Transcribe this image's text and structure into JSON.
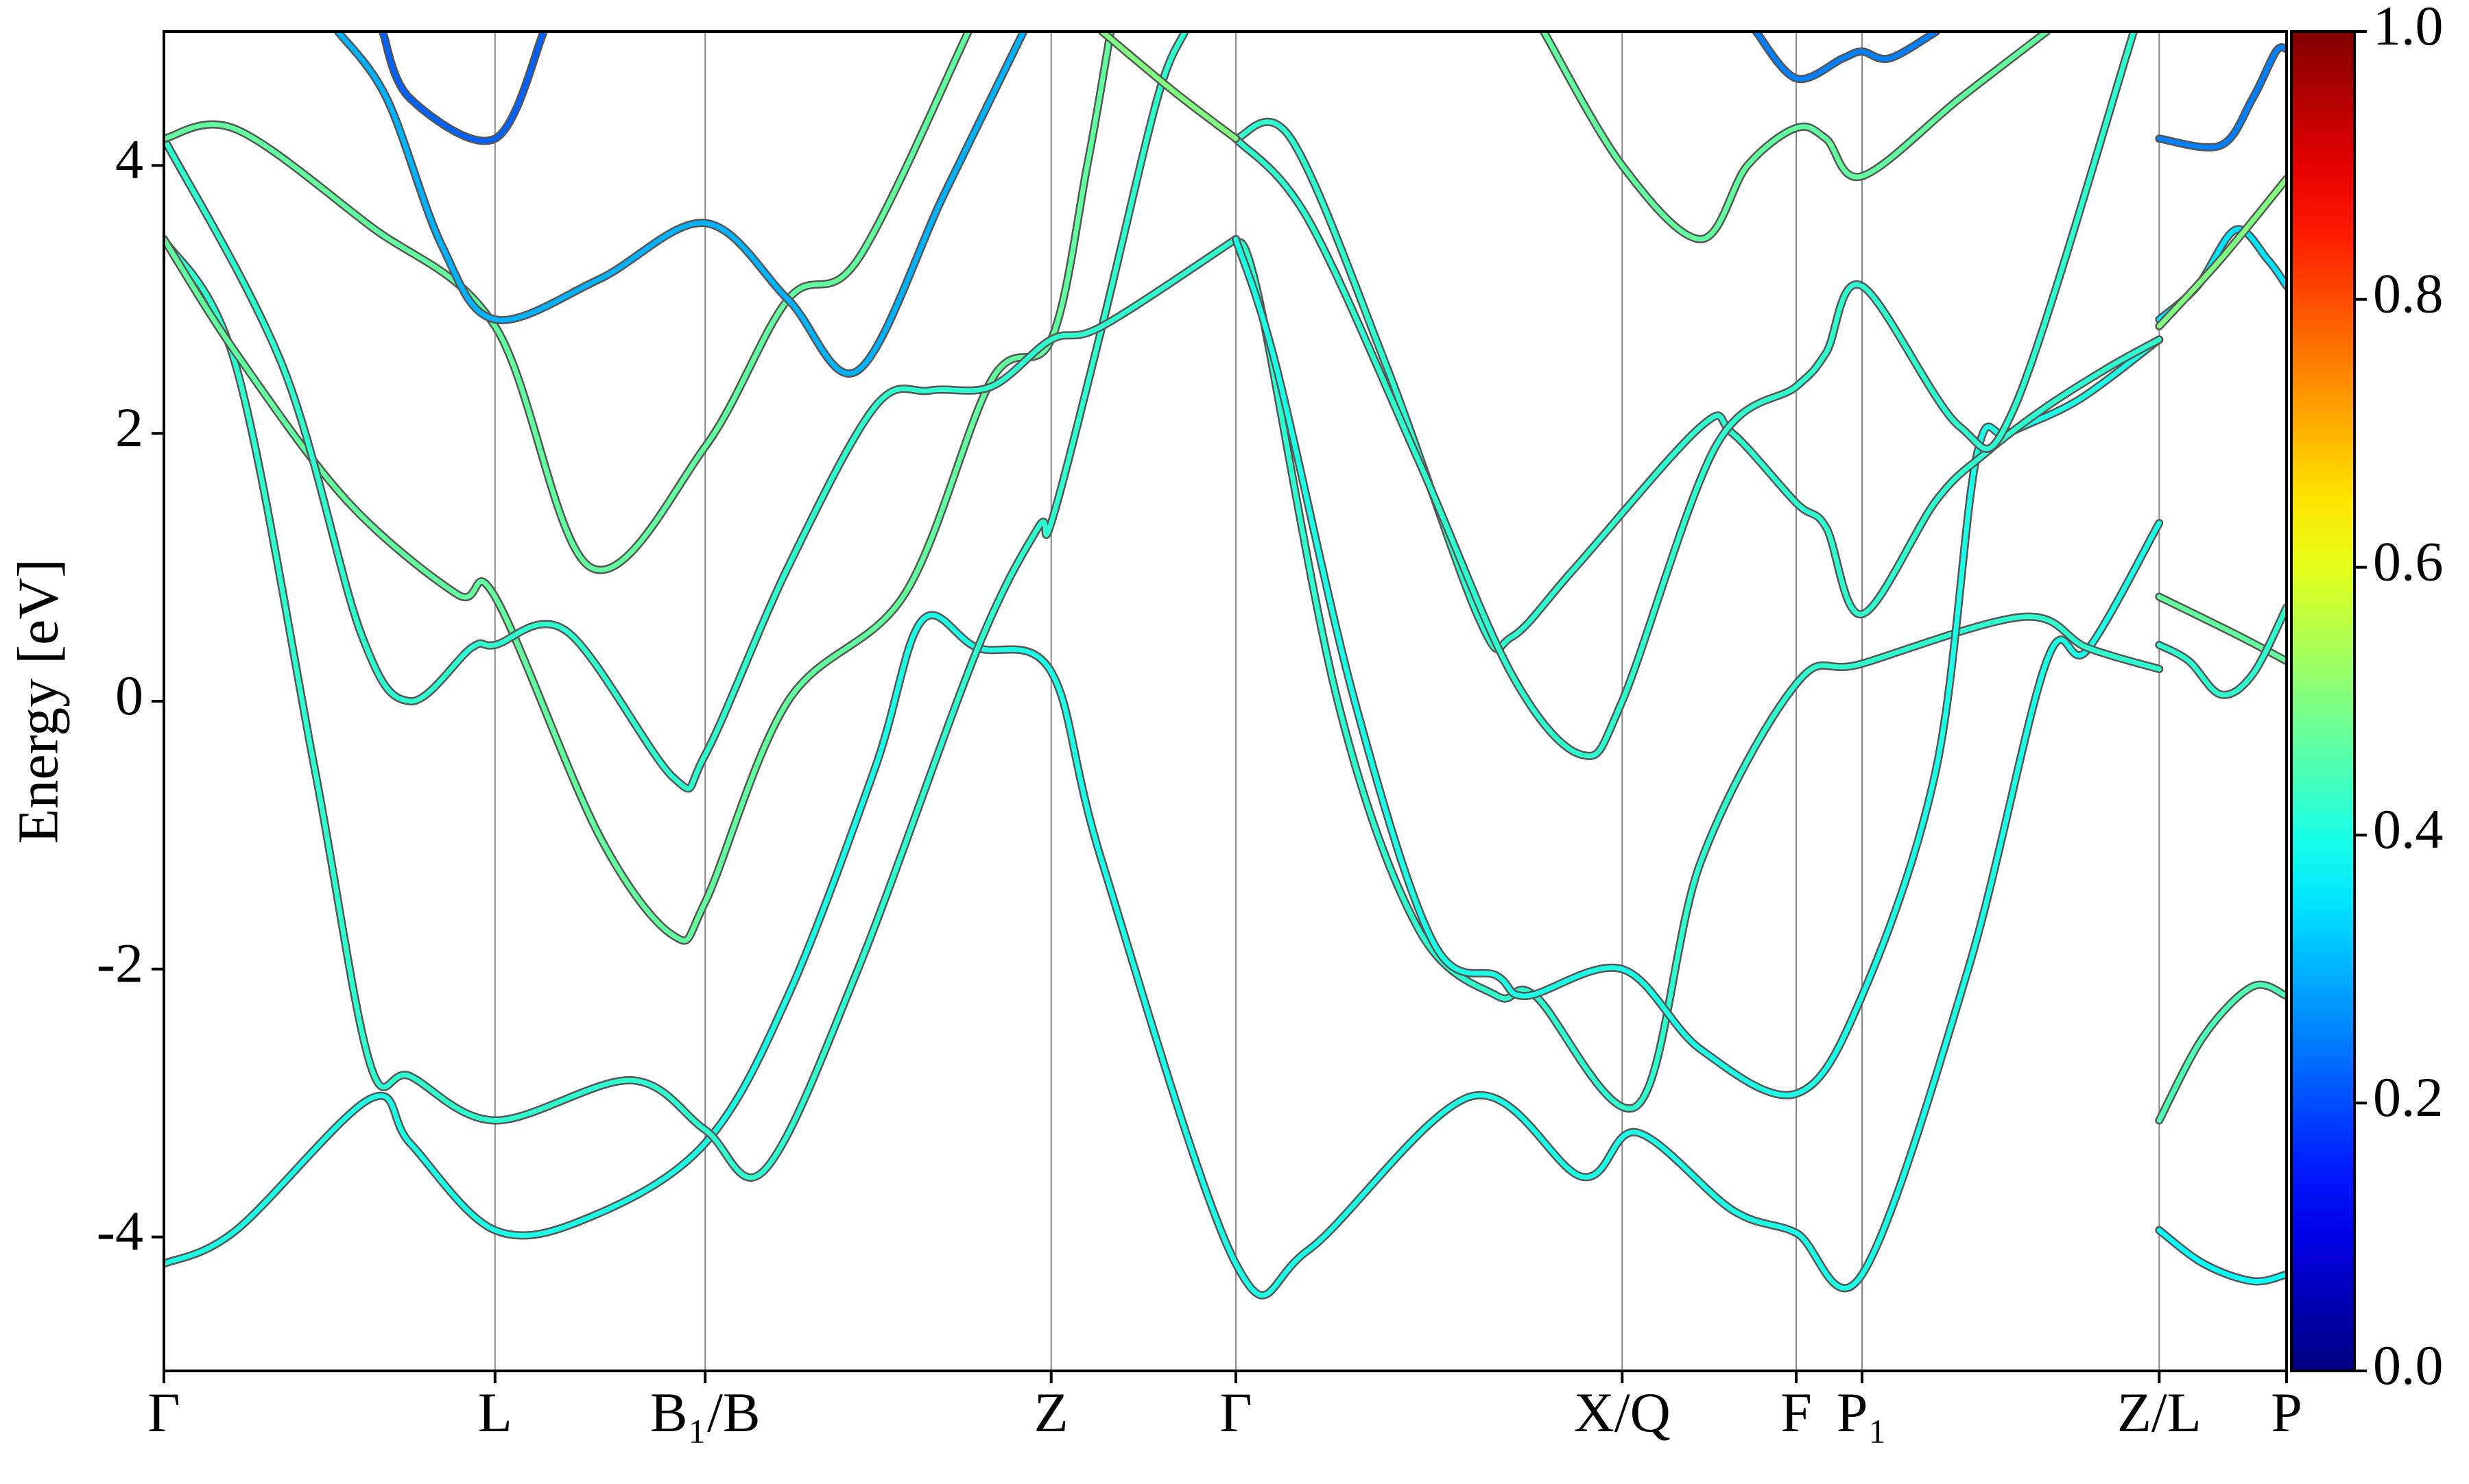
{
  "chart_data": {
    "type": "band-structure",
    "ylabel": "Energy [eV]",
    "xlim": [
      0,
      1
    ],
    "ylim": [
      -5,
      5
    ],
    "yticks": [
      -4,
      -2,
      0,
      2,
      4
    ],
    "xticks": [
      {
        "value": 0,
        "label": "Γ"
      },
      {
        "value": 0.156,
        "label": "L"
      },
      {
        "value": 0.255,
        "label": "B₁/B"
      },
      {
        "value": 0.418,
        "label": "Z"
      },
      {
        "value": 0.505,
        "label": "Γ"
      },
      {
        "value": 0.687,
        "label": "X/Q"
      },
      {
        "value": 0.769,
        "label": "F"
      },
      {
        "value": 0.8,
        "label": "P₁"
      },
      {
        "value": 0.94,
        "label": "Z/L"
      },
      {
        "value": 1,
        "label": "P"
      }
    ],
    "xgrid": true,
    "colormap": "jet",
    "clim": [
      0,
      1
    ],
    "colorbar_ticks": [
      {
        "value": 0,
        "label": "0.0"
      },
      0.2,
      0.4,
      0.6,
      0.8,
      {
        "value": 1,
        "label": "1.0"
      }
    ],
    "series": [
      {
        "weight": 0.4,
        "x": [
          0,
          0.034,
          0.097,
          0.116,
          0.156,
          0.201,
          0.255,
          0.294,
          0.335,
          0.357,
          0.383,
          0.418,
          0.442,
          0.505,
          0.539,
          0.616,
          0.668,
          0.694,
          0.739,
          0.769,
          0.8,
          0.85,
          0.887,
          0.906,
          0.94
        ],
        "values": [
          -4.2,
          -3.95,
          -2.97,
          -3.3,
          -3.95,
          -3.85,
          -3.3,
          -2.2,
          -0.5,
          0.6,
          0.4,
          0.22,
          -1.2,
          -4.2,
          -4.1,
          -2.95,
          -3.55,
          -3.22,
          -3.8,
          -3.97,
          -4.28,
          -2,
          0.3,
          0.38,
          1.33
        ]
      },
      {
        "weight": 0.42,
        "x": [
          0,
          0.034,
          0.071,
          0.097,
          0.116,
          0.156,
          0.22,
          0.255,
          0.283,
          0.327,
          0.383,
          0.412,
          0.418,
          0.442,
          0.468,
          0.481
        ],
        "values": [
          3.45,
          2.5,
          -0.5,
          -2.7,
          -2.8,
          -3.13,
          -2.83,
          -3.2,
          -3.5,
          -2,
          0.38,
          1.3,
          1.33,
          2.8,
          4.5,
          5
        ]
      },
      {
        "weight": 0.47,
        "x": [
          0,
          0.034,
          0.086,
          0.138,
          0.156,
          0.205,
          0.24,
          0.255,
          0.294,
          0.349,
          0.39,
          0.418,
          0.435,
          0.446
        ],
        "values": [
          3.45,
          2.6,
          1.5,
          0.8,
          0.78,
          -1,
          -1.75,
          -1.5,
          0,
          0.8,
          2.4,
          2.7,
          4,
          5
        ]
      },
      {
        "weight": 0.42,
        "x": [
          0,
          0.056,
          0.093,
          0.116,
          0.145,
          0.156,
          0.19,
          0.24,
          0.255,
          0.294,
          0.335,
          0.361,
          0.39,
          0.418,
          0.442,
          0.505
        ],
        "values": [
          4.2,
          2.5,
          0.5,
          0,
          0.4,
          0.42,
          0.52,
          -0.57,
          -0.4,
          1,
          2.2,
          2.32,
          2.35,
          2.7,
          2.8,
          3.45
        ]
      },
      {
        "weight": 0.47,
        "x": [
          0,
          0.034,
          0.097,
          0.156,
          0.201,
          0.255,
          0.294,
          0.327,
          0.379
        ],
        "values": [
          4.2,
          4.27,
          3.55,
          2.8,
          1.0,
          1.9,
          3.0,
          3.3,
          5
        ]
      },
      {
        "weight": 0.3,
        "x": [
          0.082,
          0.105,
          0.131,
          0.156,
          0.205,
          0.255,
          0.294,
          0.327,
          0.368,
          0.405
        ],
        "values": [
          5,
          4.5,
          3.4,
          2.85,
          3.15,
          3.57,
          3.0,
          2.47,
          3.8,
          5
        ]
      },
      {
        "weight": 0.22,
        "x": [
          0.103,
          0.116,
          0.156,
          0.179
        ],
        "values": [
          5,
          4.5,
          4.2,
          5
        ]
      },
      {
        "weight": 0.42,
        "x": [
          0.505,
          0.516,
          0.553,
          0.591,
          0.628,
          0.646,
          0.694,
          0.724,
          0.769,
          0.8,
          0.876,
          0.906,
          0.94
        ],
        "values": [
          3.45,
          3.0,
          0,
          -1.7,
          -2.2,
          -2.2,
          -3.02,
          -1.2,
          0.13,
          0.28,
          0.63,
          0.4,
          0.24
        ]
      },
      {
        "weight": 0.4,
        "x": [
          0.505,
          0.524,
          0.561,
          0.598,
          0.628,
          0.642,
          0.687,
          0.724,
          0.769,
          0.8,
          0.835,
          0.854,
          0.869,
          0.902,
          0.94
        ],
        "values": [
          3.45,
          2.5,
          0,
          -1.8,
          -2.05,
          -2.2,
          -2.0,
          -2.6,
          -2.93,
          -2.2,
          -0.5,
          1.83,
          2.0,
          2.25,
          2.7
        ]
      },
      {
        "weight": 0.42,
        "x": [
          0.505,
          0.531,
          0.576,
          0.62,
          0.635,
          0.665,
          0.724,
          0.739,
          0.769,
          0.783,
          0.8,
          0.835,
          0.858,
          0.887,
          0.917,
          0.94
        ],
        "values": [
          4.2,
          4.2,
          2.5,
          0.6,
          0.48,
          1.0,
          2.05,
          2.0,
          1.48,
          1.3,
          0.65,
          1.5,
          1.85,
          2.2,
          2.5,
          2.7
        ]
      },
      {
        "weight": 0.42,
        "x": [
          0.505,
          0.539,
          0.591,
          0.635,
          0.668,
          0.687,
          0.731,
          0.769,
          0.783,
          0.8,
          0.846,
          0.872,
          0.928
        ],
        "values": [
          4.2,
          3.6,
          1.8,
          0.2,
          -0.4,
          0,
          1.9,
          2.35,
          2.6,
          3.1,
          2.05,
          2.2,
          5
        ]
      },
      {
        "weight": 0.5,
        "x": [
          0.442,
          0.476,
          0.505
        ],
        "values": [
          5,
          4.55,
          4.2
        ]
      },
      {
        "weight": 0.47,
        "x": [
          0.65,
          0.687,
          0.724,
          0.746,
          0.769,
          0.783,
          0.8,
          0.846,
          0.887
        ],
        "values": [
          5,
          4.0,
          3.45,
          4,
          4.28,
          4.2,
          3.92,
          4.5,
          5
        ]
      },
      {
        "weight": 0.25,
        "x": [
          0.75,
          0.769,
          0.791,
          0.8,
          0.813,
          0.835
        ],
        "values": [
          5,
          4.65,
          4.8,
          4.85,
          4.8,
          5
        ]
      },
      {
        "weight": 0.25,
        "x": [
          0.94,
          0.969,
          0.984,
          0.995,
          1
        ],
        "values": [
          4.2,
          4.15,
          4.5,
          4.85,
          4.87
        ]
      },
      {
        "weight": 0.35,
        "x": [
          0.94,
          0.958,
          0.976,
          0.991,
          1
        ],
        "values": [
          2.85,
          3.1,
          3.52,
          3.3,
          3.1
        ]
      },
      {
        "weight": 0.5,
        "x": [
          0.94,
          0.969,
          1
        ],
        "values": [
          2.8,
          3.3,
          3.9
        ]
      },
      {
        "weight": 0.47,
        "x": [
          0.94,
          0.976,
          1
        ],
        "values": [
          0.78,
          0.5,
          0.3
        ]
      },
      {
        "weight": 0.42,
        "x": [
          0.94,
          0.954,
          0.969,
          0.984,
          1
        ],
        "values": [
          0.42,
          0.3,
          0.05,
          0.2,
          0.7
        ]
      },
      {
        "weight": 0.45,
        "x": [
          0.94,
          0.961,
          0.984,
          1
        ],
        "values": [
          -3.13,
          -2.5,
          -2.13,
          -2.2
        ]
      },
      {
        "weight": 0.38,
        "x": [
          0.94,
          0.961,
          0.984,
          1
        ],
        "values": [
          -3.95,
          -4.2,
          -4.33,
          -4.28
        ]
      }
    ]
  }
}
